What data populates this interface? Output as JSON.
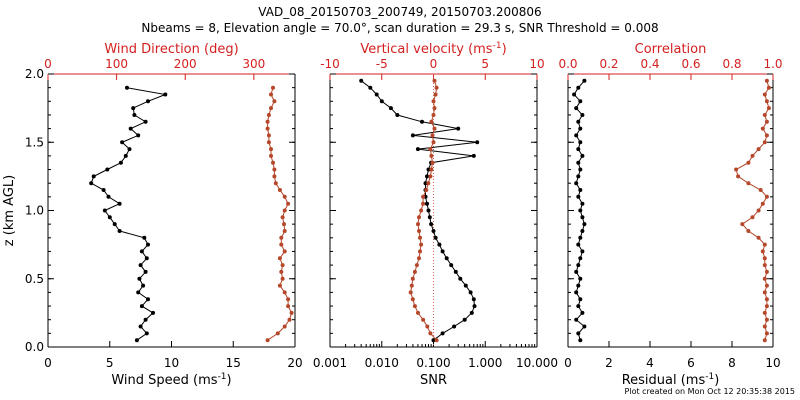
{
  "header": {
    "title_line1": "VAD_08_20150703_200749, 20150703.200806",
    "title_line2": "Nbeams = 8, Elevation angle = 70.0°, scan duration = 29.3 s, SNR Threshold = 0.008"
  },
  "footer": {
    "plot_created": "Plot created on Mon Oct 12 20:35:38 2015"
  },
  "colors": {
    "primary": "#000000",
    "secondary": "#b5472a",
    "top_axis": "#d42020",
    "dotted_line": "#d06050"
  },
  "chart_data": [
    {
      "type": "line",
      "name": "wind-panel",
      "ylabel": "z (km AGL)",
      "ylim": [
        0.0,
        2.0
      ],
      "ytick_labels": [
        "0.0",
        "0.5",
        "1.0",
        "1.5",
        "2.0"
      ],
      "bottom_axis": {
        "label": "Wind Speed (ms",
        "label_sup": "-1",
        "label_end": ")",
        "range": [
          0,
          20
        ],
        "tick_labels": [
          "0",
          "5",
          "10",
          "15",
          "20"
        ]
      },
      "top_axis": {
        "label": "Wind Direction (deg)",
        "range": [
          0,
          360
        ],
        "tick_labels": [
          "0",
          "100",
          "200",
          "300"
        ]
      },
      "series": [
        {
          "name": "Wind Speed",
          "axis": "bottom",
          "color": "#000000",
          "z": [
            0.05,
            0.1,
            0.15,
            0.2,
            0.25,
            0.3,
            0.35,
            0.4,
            0.45,
            0.5,
            0.55,
            0.6,
            0.65,
            0.7,
            0.75,
            0.8,
            0.85,
            0.9,
            0.95,
            1.0,
            1.05,
            1.1,
            1.15,
            1.2,
            1.25,
            1.3,
            1.35,
            1.4,
            1.45,
            1.5,
            1.55,
            1.6,
            1.65,
            1.7,
            1.75,
            1.8,
            1.85,
            1.9
          ],
          "values": [
            7.2,
            8.0,
            7.5,
            7.9,
            8.5,
            7.6,
            8.1,
            7.3,
            7.7,
            7.4,
            7.9,
            7.5,
            8.0,
            7.6,
            8.1,
            7.8,
            5.8,
            5.4,
            5.0,
            4.6,
            5.8,
            4.9,
            4.5,
            3.5,
            3.7,
            4.8,
            5.9,
            6.3,
            6.6,
            6.0,
            7.3,
            6.7,
            7.9,
            7.0,
            6.9,
            8.1,
            9.5,
            6.4
          ]
        },
        {
          "name": "Wind Direction",
          "axis": "top",
          "color": "#b5472a",
          "z": [
            0.05,
            0.1,
            0.15,
            0.2,
            0.25,
            0.3,
            0.35,
            0.4,
            0.45,
            0.5,
            0.55,
            0.6,
            0.65,
            0.7,
            0.75,
            0.8,
            0.85,
            0.9,
            0.95,
            1.0,
            1.05,
            1.1,
            1.15,
            1.2,
            1.25,
            1.3,
            1.35,
            1.4,
            1.45,
            1.5,
            1.55,
            1.6,
            1.65,
            1.7,
            1.75,
            1.8,
            1.85,
            1.9
          ],
          "values": [
            320,
            335,
            345,
            352,
            355,
            350,
            350,
            345,
            338,
            342,
            340,
            342,
            338,
            345,
            340,
            340,
            345,
            344,
            342,
            345,
            350,
            345,
            338,
            332,
            330,
            330,
            328,
            325,
            325,
            322,
            322,
            320,
            320,
            322,
            325,
            330,
            325,
            328
          ]
        }
      ]
    },
    {
      "type": "line",
      "name": "vertical-velocity-panel",
      "ylim": [
        0.0,
        2.0
      ],
      "bottom_axis": {
        "label": "SNR",
        "scale": "log",
        "range": [
          0.001,
          10
        ],
        "tick_labels": [
          "0.001",
          "0.010",
          "0.100",
          "1.000",
          "10.000"
        ]
      },
      "top_axis": {
        "label": "Vertical velocity (ms",
        "label_sup": "-1",
        "label_end": ")",
        "range": [
          -10,
          10
        ],
        "tick_labels": [
          "-10",
          "-5",
          "0",
          "5",
          "10"
        ]
      },
      "series": [
        {
          "name": "SNR",
          "axis": "bottom",
          "color": "#000000",
          "z": [
            0.05,
            0.1,
            0.15,
            0.2,
            0.25,
            0.3,
            0.35,
            0.4,
            0.45,
            0.5,
            0.55,
            0.6,
            0.65,
            0.7,
            0.75,
            0.8,
            0.85,
            0.9,
            0.95,
            1.0,
            1.05,
            1.1,
            1.15,
            1.2,
            1.25,
            1.3,
            1.35,
            1.4,
            1.45,
            1.5,
            1.55,
            1.6,
            1.65,
            1.7,
            1.75,
            1.8,
            1.85,
            1.9,
            1.95
          ],
          "values": [
            0.1,
            0.15,
            0.25,
            0.4,
            0.55,
            0.62,
            0.6,
            0.52,
            0.42,
            0.33,
            0.27,
            0.22,
            0.18,
            0.15,
            0.13,
            0.11,
            0.1,
            0.09,
            0.085,
            0.08,
            0.075,
            0.07,
            0.07,
            0.07,
            0.075,
            0.08,
            0.09,
            0.6,
            0.05,
            0.7,
            0.04,
            0.3,
            0.06,
            0.02,
            0.015,
            0.01,
            0.008,
            0.006,
            0.004
          ]
        },
        {
          "name": "Vertical velocity",
          "axis": "top",
          "color": "#b5472a",
          "z": [
            0.05,
            0.1,
            0.15,
            0.2,
            0.25,
            0.3,
            0.35,
            0.4,
            0.45,
            0.5,
            0.55,
            0.6,
            0.65,
            0.7,
            0.75,
            0.8,
            0.85,
            0.9,
            0.95,
            1.0,
            1.05,
            1.1,
            1.15,
            1.2,
            1.25,
            1.3,
            1.35,
            1.4,
            1.45,
            1.5,
            1.55,
            1.6,
            1.65,
            1.7,
            1.75,
            1.8,
            1.85,
            1.9,
            1.95
          ],
          "values": [
            0.3,
            -0.3,
            -0.6,
            -1.0,
            -1.5,
            -1.8,
            -2.0,
            -2.2,
            -2.1,
            -2.0,
            -1.8,
            -1.6,
            -1.4,
            -1.3,
            -1.2,
            -1.3,
            -1.4,
            -1.5,
            -1.4,
            -1.2,
            -1.0,
            -1.0,
            -0.7,
            -0.5,
            -0.3,
            -0.2,
            -0.1,
            -0.2,
            -0.3,
            0.0,
            -0.1,
            0.1,
            -0.2,
            0.0,
            0.1,
            0.0,
            0.2,
            0.3,
            0.1
          ]
        }
      ]
    },
    {
      "type": "line",
      "name": "correlation-panel",
      "ylim": [
        0.0,
        2.0
      ],
      "bottom_axis": {
        "label": "Residual (ms",
        "label_sup": "-1",
        "label_end": ")",
        "range": [
          0,
          10
        ],
        "tick_labels": [
          "0",
          "2",
          "4",
          "6",
          "8",
          "10"
        ]
      },
      "top_axis": {
        "label": "Correlation",
        "range": [
          0,
          1
        ],
        "tick_labels": [
          "0.0",
          "0.2",
          "0.4",
          "0.6",
          "0.8",
          "1.0"
        ]
      },
      "series": [
        {
          "name": "Residual",
          "axis": "bottom",
          "color": "#000000",
          "z": [
            0.05,
            0.1,
            0.15,
            0.2,
            0.25,
            0.3,
            0.35,
            0.4,
            0.45,
            0.5,
            0.55,
            0.6,
            0.65,
            0.7,
            0.75,
            0.8,
            0.85,
            0.9,
            0.95,
            1.0,
            1.05,
            1.1,
            1.15,
            1.2,
            1.25,
            1.3,
            1.35,
            1.4,
            1.45,
            1.5,
            1.55,
            1.6,
            1.65,
            1.7,
            1.75,
            1.8,
            1.85,
            1.9,
            1.95
          ],
          "values": [
            0.6,
            0.5,
            0.8,
            0.4,
            0.7,
            0.5,
            0.6,
            0.4,
            0.5,
            0.6,
            0.4,
            0.5,
            0.6,
            0.7,
            0.5,
            0.6,
            0.7,
            0.8,
            0.7,
            0.6,
            0.7,
            0.5,
            0.6,
            0.4,
            0.5,
            0.6,
            0.5,
            0.7,
            0.5,
            0.6,
            0.4,
            0.6,
            0.5,
            0.7,
            0.4,
            0.6,
            0.3,
            0.5,
            0.8
          ]
        },
        {
          "name": "Correlation",
          "axis": "top",
          "color": "#b5472a",
          "z": [
            0.05,
            0.1,
            0.15,
            0.2,
            0.25,
            0.3,
            0.35,
            0.4,
            0.45,
            0.5,
            0.55,
            0.6,
            0.65,
            0.7,
            0.75,
            0.8,
            0.85,
            0.9,
            0.95,
            1.0,
            1.05,
            1.1,
            1.15,
            1.2,
            1.25,
            1.3,
            1.35,
            1.4,
            1.45,
            1.5,
            1.55,
            1.6,
            1.65,
            1.7,
            1.75,
            1.8,
            1.85,
            1.9,
            1.95
          ],
          "values": [
            0.96,
            0.97,
            0.96,
            0.97,
            0.96,
            0.97,
            0.97,
            0.96,
            0.97,
            0.96,
            0.97,
            0.96,
            0.96,
            0.95,
            0.96,
            0.93,
            0.88,
            0.85,
            0.9,
            0.93,
            0.95,
            0.97,
            0.94,
            0.88,
            0.83,
            0.82,
            0.88,
            0.9,
            0.93,
            0.96,
            0.97,
            0.95,
            0.97,
            0.96,
            0.98,
            0.97,
            0.96,
            0.98,
            0.97
          ]
        }
      ]
    }
  ]
}
